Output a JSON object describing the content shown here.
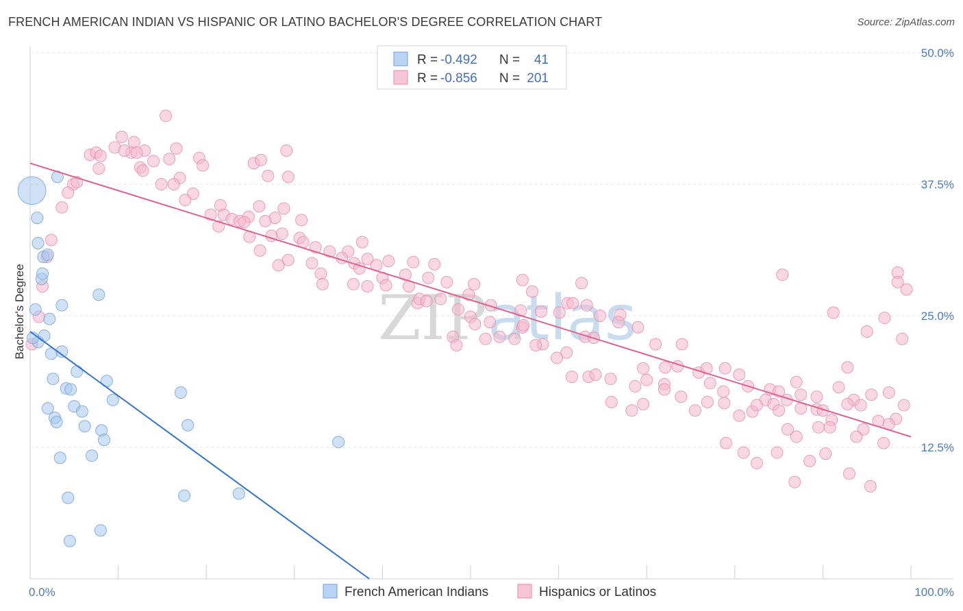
{
  "header": {
    "title": "FRENCH AMERICAN INDIAN VS HISPANIC OR LATINO BACHELOR'S DEGREE CORRELATION CHART",
    "source": "Source: ZipAtlas.com"
  },
  "legend_top": {
    "rows": [
      {
        "r_label": "R = ",
        "r_value": "-0.492",
        "n_label": "N = ",
        "n_value": "41",
        "color": "#a8c8f0"
      },
      {
        "r_label": "R = ",
        "r_value": "-0.856",
        "n_label": "N = ",
        "n_value": "201",
        "color": "#f5b8cc"
      }
    ]
  },
  "watermark": {
    "part1": "ZIP",
    "part2": "atlas"
  },
  "chart_data": {
    "type": "scatter",
    "title": "FRENCH AMERICAN INDIAN VS HISPANIC OR LATINO BACHELOR'S DEGREE CORRELATION CHART",
    "xlabel": "",
    "ylabel": "Bachelor's Degree",
    "xlim": [
      0,
      100
    ],
    "ylim": [
      0,
      50
    ],
    "x_tick_labels": [
      "0.0%",
      "100.0%"
    ],
    "y_ticks": [
      12.5,
      25.0,
      37.5,
      50.0
    ],
    "y_tick_labels": [
      "12.5%",
      "25.0%",
      "37.5%",
      "50.0%"
    ],
    "grid": true,
    "legend_placement": "bottom-center",
    "series": [
      {
        "name": "French American Indians",
        "color": "#a8c8f0",
        "stroke": "#6f9fd8",
        "line_color": "#2f74d0",
        "trend": {
          "x": [
            0,
            38.5
          ],
          "y": [
            23.5,
            0
          ]
        },
        "points": [
          [
            0.2,
            36.9
          ],
          [
            0.8,
            34.3
          ],
          [
            0.9,
            31.9
          ],
          [
            1.5,
            30.6
          ],
          [
            2.0,
            30.8
          ],
          [
            1.3,
            28.5
          ],
          [
            1.4,
            29.0
          ],
          [
            0.6,
            25.6
          ],
          [
            2.2,
            24.7
          ],
          [
            3.6,
            26.0
          ],
          [
            1.6,
            23.1
          ],
          [
            0.9,
            22.5
          ],
          [
            2.4,
            21.4
          ],
          [
            3.6,
            21.6
          ],
          [
            3.1,
            38.2
          ],
          [
            7.8,
            27.0
          ],
          [
            2.6,
            19.0
          ],
          [
            4.1,
            18.1
          ],
          [
            4.6,
            18.0
          ],
          [
            5.3,
            19.7
          ],
          [
            8.7,
            18.8
          ],
          [
            2.0,
            16.2
          ],
          [
            2.8,
            15.3
          ],
          [
            3.0,
            14.9
          ],
          [
            5.0,
            16.4
          ],
          [
            5.9,
            15.9
          ],
          [
            6.2,
            14.5
          ],
          [
            9.4,
            17.0
          ],
          [
            8.1,
            14.1
          ],
          [
            8.4,
            13.2
          ],
          [
            3.4,
            11.5
          ],
          [
            7.0,
            11.7
          ],
          [
            17.1,
            17.7
          ],
          [
            17.9,
            14.6
          ],
          [
            35.0,
            13.0
          ],
          [
            4.3,
            7.7
          ],
          [
            17.5,
            7.9
          ],
          [
            23.7,
            8.1
          ],
          [
            4.5,
            3.6
          ],
          [
            8.0,
            4.6
          ],
          [
            0.3,
            22.9
          ]
        ],
        "sizes": [
          2.4,
          1,
          1,
          1,
          1,
          1,
          1,
          1,
          1,
          1,
          1,
          1,
          1,
          1,
          1,
          1,
          1,
          1,
          1,
          1,
          1,
          1,
          1,
          1,
          1,
          1,
          1,
          1,
          1,
          1,
          1,
          1,
          1,
          1,
          1,
          1,
          1,
          1,
          1,
          1,
          1
        ]
      },
      {
        "name": "Hispanics or Latinos",
        "color": "#f5b8cc",
        "stroke": "#e88aa8",
        "line_color": "#e0608c",
        "trend": {
          "x": [
            0,
            100
          ],
          "y": [
            39.5,
            13.5
          ]
        },
        "points": [
          [
            15.4,
            44.0
          ],
          [
            10.4,
            42.0
          ],
          [
            11.8,
            41.5
          ],
          [
            9.6,
            41.0
          ],
          [
            16.6,
            40.9
          ],
          [
            13.0,
            40.7
          ],
          [
            6.8,
            40.3
          ],
          [
            7.5,
            40.5
          ],
          [
            8.0,
            40.2
          ],
          [
            11.5,
            40.5
          ],
          [
            10.7,
            40.7
          ],
          [
            12.1,
            40.5
          ],
          [
            15.8,
            39.9
          ],
          [
            14.0,
            39.7
          ],
          [
            19.2,
            40.0
          ],
          [
            7.8,
            39.0
          ],
          [
            12.5,
            39.1
          ],
          [
            12.8,
            38.8
          ],
          [
            19.6,
            39.3
          ],
          [
            29.1,
            40.7
          ],
          [
            25.4,
            39.5
          ],
          [
            26.2,
            39.8
          ],
          [
            27.0,
            38.3
          ],
          [
            29.3,
            38.2
          ],
          [
            4.9,
            37.5
          ],
          [
            5.3,
            37.7
          ],
          [
            17.0,
            38.1
          ],
          [
            16.3,
            37.5
          ],
          [
            14.9,
            37.5
          ],
          [
            4.3,
            36.7
          ],
          [
            18.5,
            36.6
          ],
          [
            17.6,
            36.0
          ],
          [
            27.8,
            34.3
          ],
          [
            30.8,
            34.1
          ],
          [
            28.8,
            35.2
          ],
          [
            21.6,
            35.5
          ],
          [
            22.0,
            34.6
          ],
          [
            3.6,
            35.3
          ],
          [
            20.5,
            34.6
          ],
          [
            22.9,
            34.2
          ],
          [
            24.8,
            34.4
          ],
          [
            26.7,
            34.0
          ],
          [
            23.8,
            34.0
          ],
          [
            26.0,
            35.4
          ],
          [
            24.3,
            33.9
          ],
          [
            21.4,
            33.5
          ],
          [
            24.9,
            32.5
          ],
          [
            27.4,
            32.6
          ],
          [
            28.6,
            32.8
          ],
          [
            30.6,
            32.4
          ],
          [
            31.0,
            32.0
          ],
          [
            32.4,
            31.5
          ],
          [
            2.4,
            32.2
          ],
          [
            1.9,
            30.6
          ],
          [
            26.1,
            31.2
          ],
          [
            34.0,
            31.1
          ],
          [
            36.1,
            31.1
          ],
          [
            37.7,
            32.0
          ],
          [
            32.0,
            30.0
          ],
          [
            35.4,
            30.5
          ],
          [
            38.3,
            30.4
          ],
          [
            40.7,
            30.2
          ],
          [
            36.8,
            30.0
          ],
          [
            39.3,
            29.8
          ],
          [
            43.5,
            30.1
          ],
          [
            45.9,
            29.9
          ],
          [
            28.2,
            29.8
          ],
          [
            29.3,
            30.3
          ],
          [
            33.0,
            29.0
          ],
          [
            37.4,
            29.5
          ],
          [
            40.0,
            28.6
          ],
          [
            42.6,
            28.9
          ],
          [
            45.2,
            28.6
          ],
          [
            47.3,
            28.2
          ],
          [
            50.4,
            28.0
          ],
          [
            55.9,
            28.4
          ],
          [
            62.6,
            28.1
          ],
          [
            1.4,
            27.8
          ],
          [
            1.0,
            24.9
          ],
          [
            0.2,
            22.3
          ],
          [
            33.2,
            28.0
          ],
          [
            36.7,
            28.0
          ],
          [
            38.3,
            27.8
          ],
          [
            40.4,
            27.9
          ],
          [
            43.0,
            27.8
          ],
          [
            44.0,
            26.2
          ],
          [
            44.2,
            26.6
          ],
          [
            46.6,
            26.6
          ],
          [
            45.0,
            26.4
          ],
          [
            49.8,
            27.0
          ],
          [
            52.3,
            26.0
          ],
          [
            57.0,
            27.3
          ],
          [
            61.0,
            26.2
          ],
          [
            61.6,
            26.2
          ],
          [
            48.6,
            25.6
          ],
          [
            50.0,
            24.9
          ],
          [
            55.7,
            25.5
          ],
          [
            58.0,
            25.4
          ],
          [
            50.5,
            24.2
          ],
          [
            52.2,
            24.4
          ],
          [
            55.9,
            23.9
          ],
          [
            56.0,
            24.1
          ],
          [
            60.1,
            25.3
          ],
          [
            63.2,
            26.0
          ],
          [
            64.7,
            25.0
          ],
          [
            67.0,
            25.1
          ],
          [
            55.0,
            22.8
          ],
          [
            58.2,
            22.3
          ],
          [
            59.8,
            21.0
          ],
          [
            60.9,
            21.5
          ],
          [
            63.0,
            23.0
          ],
          [
            64.0,
            22.9
          ],
          [
            66.8,
            24.4
          ],
          [
            69.0,
            23.9
          ],
          [
            71.0,
            22.3
          ],
          [
            74.0,
            22.3
          ],
          [
            57.4,
            22.2
          ],
          [
            48.0,
            23.0
          ],
          [
            48.4,
            22.2
          ],
          [
            51.7,
            22.8
          ],
          [
            53.3,
            23.0
          ],
          [
            61.5,
            19.2
          ],
          [
            63.4,
            19.2
          ],
          [
            64.2,
            19.4
          ],
          [
            65.9,
            19.0
          ],
          [
            68.7,
            18.3
          ],
          [
            70.0,
            18.9
          ],
          [
            72.0,
            18.5
          ],
          [
            75.9,
            19.6
          ],
          [
            77.2,
            18.6
          ],
          [
            80.5,
            19.4
          ],
          [
            78.7,
            17.8
          ],
          [
            81.5,
            18.3
          ],
          [
            83.5,
            17.0
          ],
          [
            85.9,
            17.0
          ],
          [
            87.5,
            17.5
          ],
          [
            89.3,
            17.3
          ],
          [
            91.8,
            18.2
          ],
          [
            93.5,
            17.0
          ],
          [
            95.5,
            17.5
          ],
          [
            97.5,
            17.7
          ],
          [
            99.2,
            16.5
          ],
          [
            66.0,
            16.8
          ],
          [
            68.3,
            16.0
          ],
          [
            69.6,
            16.6
          ],
          [
            72.0,
            18.0
          ],
          [
            73.9,
            17.3
          ],
          [
            75.5,
            16.0
          ],
          [
            76.9,
            16.8
          ],
          [
            78.8,
            16.7
          ],
          [
            80.5,
            15.5
          ],
          [
            82.0,
            15.9
          ],
          [
            84.4,
            16.6
          ],
          [
            85.0,
            16.0
          ],
          [
            87.5,
            16.2
          ],
          [
            89.5,
            14.4
          ],
          [
            91.0,
            15.1
          ],
          [
            92.8,
            16.6
          ],
          [
            94.6,
            14.2
          ],
          [
            96.3,
            15.0
          ],
          [
            98.3,
            15.2
          ],
          [
            69.6,
            20.0
          ],
          [
            72.1,
            20.1
          ],
          [
            73.5,
            20.2
          ],
          [
            76.8,
            20.0
          ],
          [
            78.9,
            20.0
          ],
          [
            84.0,
            18.0
          ],
          [
            87.0,
            18.7
          ],
          [
            89.3,
            16.1
          ],
          [
            94.3,
            16.5
          ],
          [
            97.5,
            14.7
          ],
          [
            82.5,
            16.5
          ],
          [
            86.0,
            14.2
          ],
          [
            90.8,
            14.4
          ],
          [
            93.8,
            13.5
          ],
          [
            96.9,
            12.9
          ],
          [
            79.0,
            12.9
          ],
          [
            81.0,
            12.0
          ],
          [
            82.5,
            11.0
          ],
          [
            84.8,
            12.0
          ],
          [
            86.8,
            9.2
          ],
          [
            88.5,
            11.2
          ],
          [
            90.3,
            11.9
          ],
          [
            93.0,
            10.0
          ],
          [
            95.4,
            8.8
          ],
          [
            85.0,
            17.8
          ],
          [
            87.0,
            13.5
          ],
          [
            90.0,
            16.0
          ],
          [
            98.5,
            29.1
          ],
          [
            98.5,
            28.2
          ],
          [
            99.5,
            27.5
          ],
          [
            99.0,
            22.8
          ],
          [
            91.2,
            25.3
          ],
          [
            92.8,
            20.1
          ],
          [
            97.0,
            24.8
          ],
          [
            95.0,
            23.5
          ],
          [
            85.4,
            28.9
          ]
        ]
      }
    ]
  },
  "bottom_legend": {
    "items": [
      {
        "label": "French American Indians",
        "color": "#a8c8f0"
      },
      {
        "label": "Hispanics or Latinos",
        "color": "#f5b8cc"
      }
    ]
  }
}
